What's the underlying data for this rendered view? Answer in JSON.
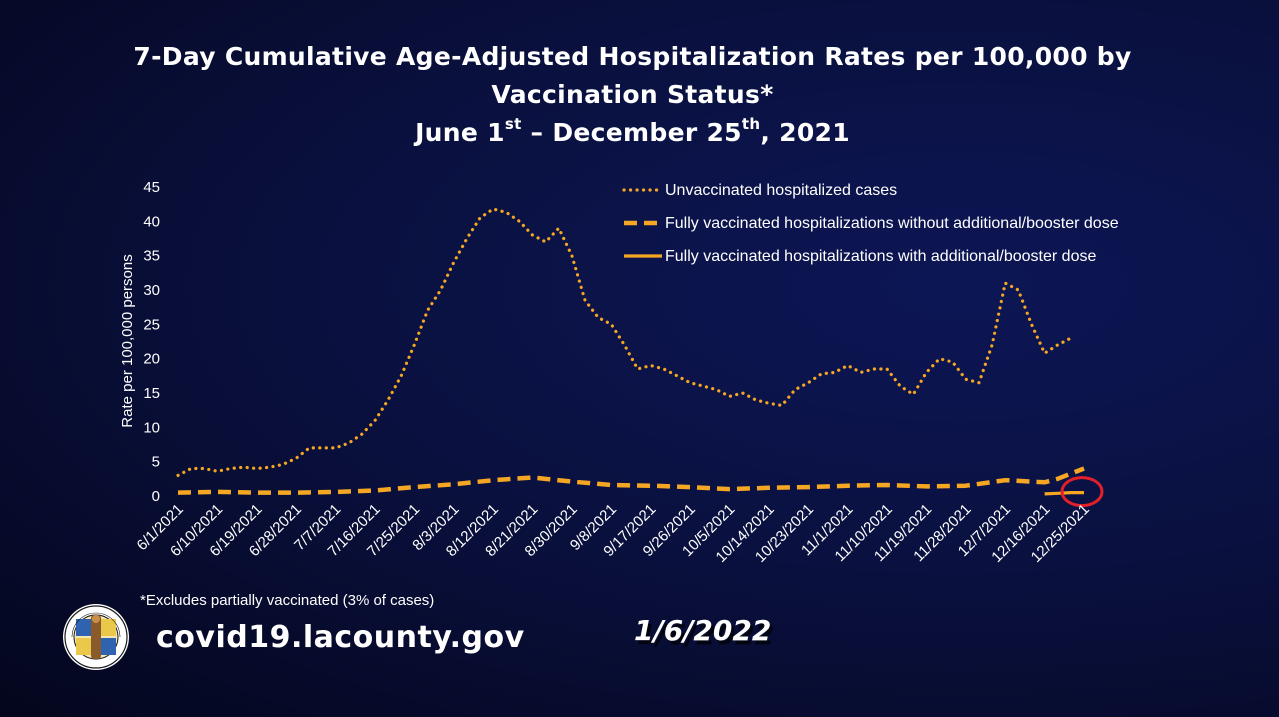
{
  "title": {
    "line1": "7-Day Cumulative Age-Adjusted Hospitalization Rates per 100,000 by",
    "line2": "Vaccination Status*",
    "line3_prefix": "June 1",
    "line3_sup1": "st",
    "line3_mid": " – December 25",
    "line3_sup2": "th",
    "line3_suffix": ", 2021"
  },
  "footnote": "*Excludes partially vaccinated (3% of cases)",
  "website": "covid19.lacounty.gov",
  "date": "1/6/2022",
  "seal": {
    "text_top": "COUNTY OF LOS ANGELES",
    "text_bottom": "CALIFORNIA"
  },
  "colors": {
    "series": "#f5a623",
    "highlight_circle": "#e3202a",
    "background": "#0a1140"
  },
  "chart_data": {
    "type": "line",
    "ylabel": "Rate per 100,000 persons",
    "ylim": [
      0,
      45
    ],
    "yticks": [
      0,
      5,
      10,
      15,
      20,
      25,
      30,
      35,
      40,
      45
    ],
    "x_start": "6/1/2021",
    "x_end": "12/25/2021",
    "xtick_labels": [
      "6/1/2021",
      "6/10/2021",
      "6/19/2021",
      "6/28/2021",
      "7/7/2021",
      "7/16/2021",
      "7/25/2021",
      "8/3/2021",
      "8/12/2021",
      "8/21/2021",
      "8/30/2021",
      "9/8/2021",
      "9/17/2021",
      "9/26/2021",
      "10/5/2021",
      "10/14/2021",
      "10/23/2021",
      "11/1/2021",
      "11/10/2021",
      "11/19/2021",
      "11/28/2021",
      "12/7/2021",
      "12/16/2021",
      "12/25/2021"
    ],
    "legend_position": "top-right",
    "grid": false,
    "annotation": "red circle around with-booster line at 12/25/2021",
    "series": [
      {
        "name": "Unvaccinated hospitalized cases",
        "style": "dotted",
        "points": [
          [
            "6/1/2021",
            3.0
          ],
          [
            "6/4/2021",
            4.0
          ],
          [
            "6/7/2021",
            4.0
          ],
          [
            "6/10/2021",
            3.6
          ],
          [
            "6/13/2021",
            4.0
          ],
          [
            "6/16/2021",
            4.2
          ],
          [
            "6/19/2021",
            4.0
          ],
          [
            "6/22/2021",
            4.2
          ],
          [
            "6/25/2021",
            4.6
          ],
          [
            "6/28/2021",
            5.5
          ],
          [
            "7/1/2021",
            7.0
          ],
          [
            "7/4/2021",
            7.0
          ],
          [
            "7/7/2021",
            7.0
          ],
          [
            "7/10/2021",
            7.7
          ],
          [
            "7/13/2021",
            9.0
          ],
          [
            "7/16/2021",
            11.0
          ],
          [
            "7/19/2021",
            14.0
          ],
          [
            "7/22/2021",
            17.5
          ],
          [
            "7/25/2021",
            22.0
          ],
          [
            "7/28/2021",
            27.0
          ],
          [
            "7/31/2021",
            30.0
          ],
          [
            "8/3/2021",
            34.0
          ],
          [
            "8/6/2021",
            37.5
          ],
          [
            "8/9/2021",
            40.5
          ],
          [
            "8/12/2021",
            41.8
          ],
          [
            "8/15/2021",
            41.3
          ],
          [
            "8/18/2021",
            40.0
          ],
          [
            "8/21/2021",
            38.0
          ],
          [
            "8/24/2021",
            37.0
          ],
          [
            "8/27/2021",
            39.0
          ],
          [
            "8/30/2021",
            35.0
          ],
          [
            "9/2/2021",
            28.5
          ],
          [
            "9/5/2021",
            26.0
          ],
          [
            "9/8/2021",
            25.0
          ],
          [
            "9/11/2021",
            22.0
          ],
          [
            "9/14/2021",
            18.5
          ],
          [
            "9/17/2021",
            19.0
          ],
          [
            "9/20/2021",
            18.5
          ],
          [
            "9/23/2021",
            17.5
          ],
          [
            "9/26/2021",
            16.5
          ],
          [
            "9/29/2021",
            16.0
          ],
          [
            "10/2/2021",
            15.5
          ],
          [
            "10/5/2021",
            14.5
          ],
          [
            "10/8/2021",
            15.0
          ],
          [
            "10/11/2021",
            14.0
          ],
          [
            "10/14/2021",
            13.5
          ],
          [
            "10/17/2021",
            13.2
          ],
          [
            "10/20/2021",
            15.5
          ],
          [
            "10/23/2021",
            16.5
          ],
          [
            "10/26/2021",
            17.8
          ],
          [
            "10/29/2021",
            18.0
          ],
          [
            "11/1/2021",
            19.0
          ],
          [
            "11/4/2021",
            18.0
          ],
          [
            "11/7/2021",
            18.5
          ],
          [
            "11/10/2021",
            18.5
          ],
          [
            "11/13/2021",
            16.0
          ],
          [
            "11/16/2021",
            14.8
          ],
          [
            "11/19/2021",
            18.0
          ],
          [
            "11/22/2021",
            20.0
          ],
          [
            "11/25/2021",
            19.5
          ],
          [
            "11/28/2021",
            17.0
          ],
          [
            "12/1/2021",
            16.5
          ],
          [
            "12/4/2021",
            22.0
          ],
          [
            "12/7/2021",
            31.0
          ],
          [
            "12/10/2021",
            30.0
          ],
          [
            "12/13/2021",
            25.0
          ],
          [
            "12/16/2021",
            20.8
          ],
          [
            "12/19/2021",
            22.0
          ],
          [
            "12/22/2021",
            23.0
          ]
        ]
      },
      {
        "name": "Fully vaccinated hospitalizations without additional/booster dose",
        "style": "dashed",
        "points": [
          [
            "6/1/2021",
            0.5
          ],
          [
            "6/10/2021",
            0.6
          ],
          [
            "6/19/2021",
            0.5
          ],
          [
            "6/28/2021",
            0.5
          ],
          [
            "7/7/2021",
            0.6
          ],
          [
            "7/16/2021",
            0.8
          ],
          [
            "7/25/2021",
            1.3
          ],
          [
            "8/3/2021",
            1.7
          ],
          [
            "8/12/2021",
            2.3
          ],
          [
            "8/21/2021",
            2.7
          ],
          [
            "8/30/2021",
            2.1
          ],
          [
            "9/8/2021",
            1.6
          ],
          [
            "9/17/2021",
            1.5
          ],
          [
            "9/26/2021",
            1.3
          ],
          [
            "10/5/2021",
            1.0
          ],
          [
            "10/14/2021",
            1.2
          ],
          [
            "10/23/2021",
            1.3
          ],
          [
            "11/1/2021",
            1.5
          ],
          [
            "11/10/2021",
            1.6
          ],
          [
            "11/19/2021",
            1.4
          ],
          [
            "11/28/2021",
            1.5
          ],
          [
            "12/7/2021",
            2.3
          ],
          [
            "12/16/2021",
            2.0
          ],
          [
            "12/19/2021",
            2.5
          ],
          [
            "12/25/2021",
            4.0
          ]
        ]
      },
      {
        "name": "Fully vaccinated hospitalizations with additional/booster dose",
        "style": "solid",
        "points": [
          [
            "12/16/2021",
            0.3
          ],
          [
            "12/19/2021",
            0.4
          ],
          [
            "12/22/2021",
            0.5
          ],
          [
            "12/25/2021",
            0.5
          ]
        ]
      }
    ]
  }
}
